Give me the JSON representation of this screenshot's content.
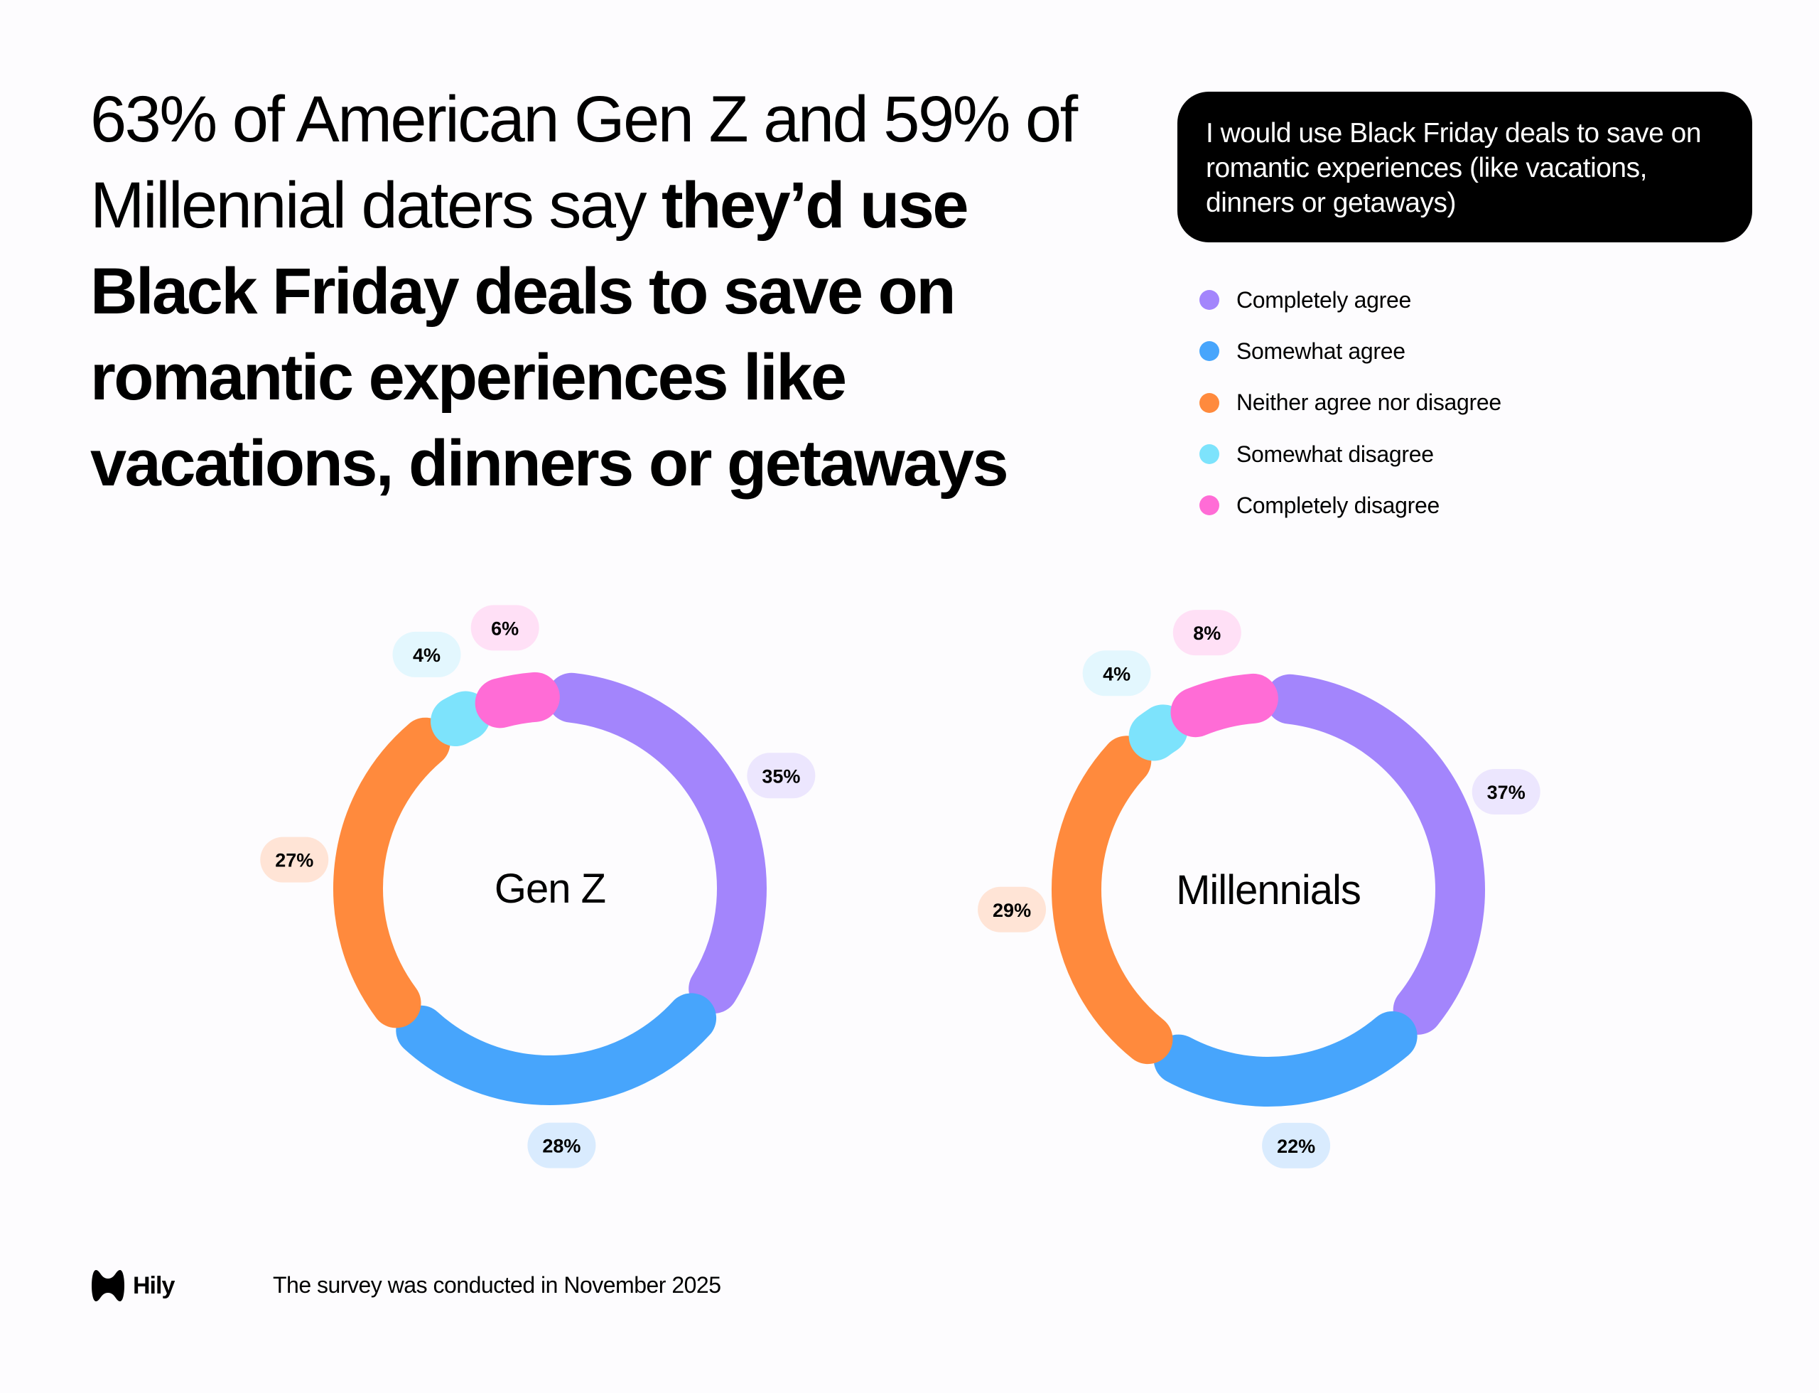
{
  "headline": {
    "regular": "63% of American Gen Z and 59% of Millennial daters say ",
    "bold": "they’d use Black Friday deals to save on romantic experiences like vacations, dinners or getaways"
  },
  "question": "I would use Black Friday deals to save on romantic experiences (like vacations, dinners or getaways)",
  "footer": {
    "brand": "Hily",
    "note": "The survey was conducted in November 2025"
  },
  "chart_data": {
    "type": "donut",
    "categories": [
      "Completely agree",
      "Somewhat agree",
      "Neither agree nor disagree",
      "Somewhat disagree",
      "Completely disagree"
    ],
    "colors": [
      "#a385fc",
      "#47a5fc",
      "#ff8a3d",
      "#7de3fc",
      "#ff6cd6"
    ],
    "label_bg_colors": [
      "#ece6fe",
      "#d9ebfe",
      "#ffe4d6",
      "#e3f7fe",
      "#ffe0f6"
    ],
    "legend_position": "top-right",
    "charts": [
      {
        "title": "Gen Z",
        "values": [
          35,
          28,
          27,
          4,
          6
        ],
        "labels": [
          "35%",
          "28%",
          "27%",
          "4%",
          "6%"
        ]
      },
      {
        "title": "Millennials",
        "values": [
          37,
          22,
          29,
          4,
          8
        ],
        "labels": [
          "37%",
          "22%",
          "29%",
          "4%",
          "8%"
        ]
      }
    ]
  }
}
